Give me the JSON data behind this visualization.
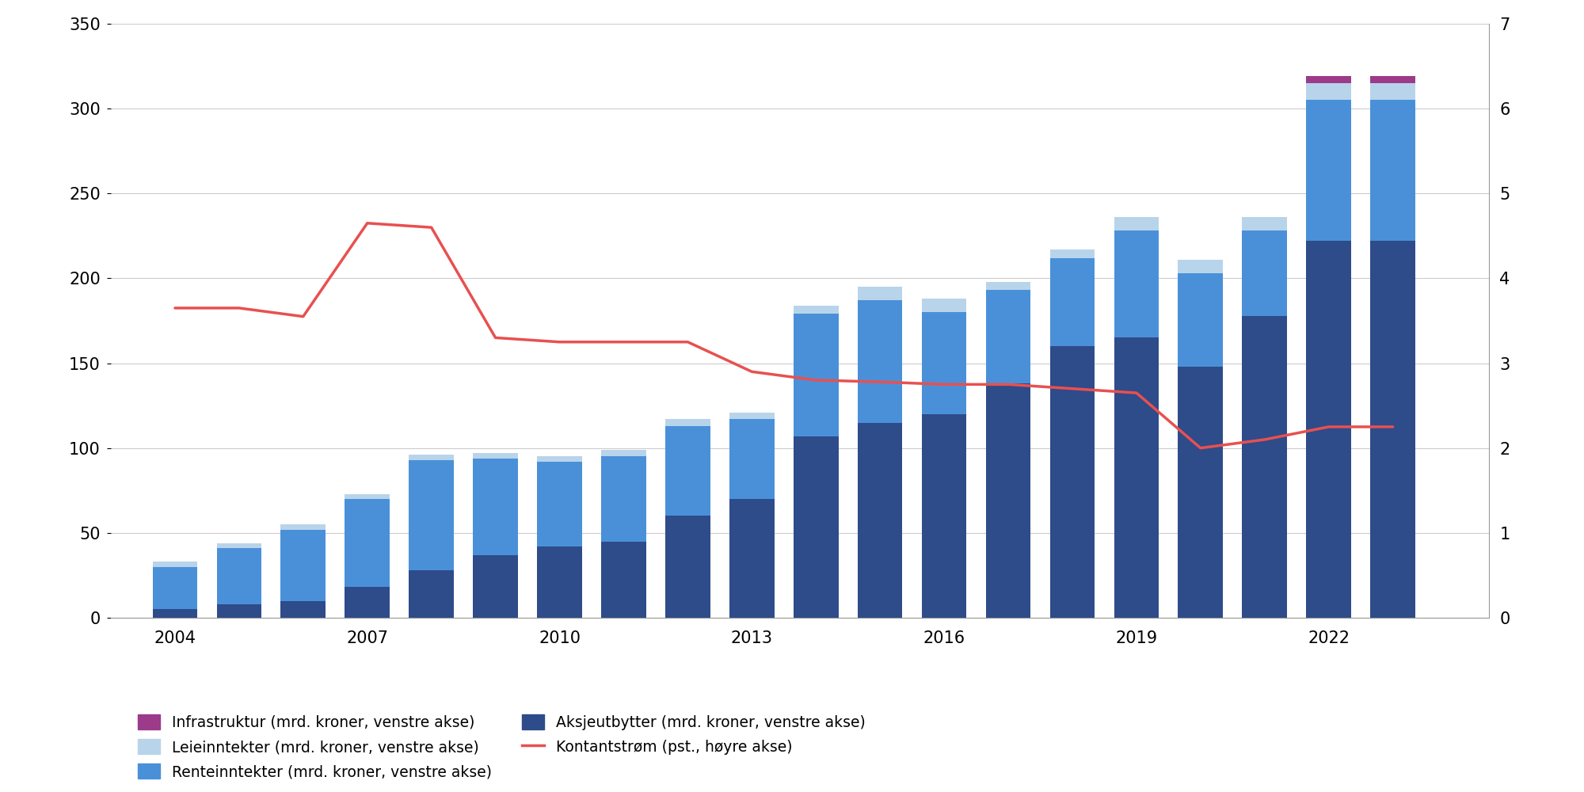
{
  "years": [
    2004,
    2005,
    2006,
    2007,
    2008,
    2009,
    2010,
    2011,
    2012,
    2013,
    2014,
    2015,
    2016,
    2017,
    2018,
    2019,
    2020,
    2021,
    2022,
    2023
  ],
  "aksjeutbytter": [
    5,
    8,
    10,
    18,
    28,
    37,
    42,
    45,
    60,
    70,
    107,
    115,
    120,
    138,
    160,
    165,
    148,
    178,
    222,
    222
  ],
  "renteinntekter": [
    25,
    33,
    42,
    52,
    65,
    57,
    50,
    50,
    53,
    47,
    72,
    72,
    60,
    55,
    52,
    63,
    55,
    50,
    83,
    83
  ],
  "leieinntekter": [
    3,
    3,
    3,
    3,
    3,
    3,
    3,
    4,
    4,
    4,
    5,
    8,
    8,
    5,
    5,
    8,
    8,
    8,
    10,
    10
  ],
  "infrastruktur": [
    0,
    0,
    0,
    0,
    0,
    0,
    0,
    0,
    0,
    0,
    0,
    0,
    0,
    0,
    0,
    0,
    0,
    0,
    4,
    4
  ],
  "kontantstrom": [
    3.65,
    3.65,
    3.55,
    4.65,
    4.6,
    3.3,
    3.25,
    3.25,
    3.25,
    2.9,
    2.8,
    2.78,
    2.75,
    2.75,
    2.7,
    2.65,
    2.0,
    2.1,
    2.25,
    2.25
  ],
  "color_aksjeutbytter": "#2e4b8a",
  "color_renteinntekter": "#4a90d9",
  "color_leieinntekter": "#b8d4ea",
  "color_infrastruktur": "#9b3b8a",
  "color_line": "#e85050",
  "ylim_left": [
    0,
    350
  ],
  "ylim_right": [
    0,
    7
  ],
  "yticks_left": [
    0,
    50,
    100,
    150,
    200,
    250,
    300,
    350
  ],
  "yticks_right": [
    0,
    1,
    2,
    3,
    4,
    5,
    6,
    7
  ],
  "xtick_years": [
    2004,
    2007,
    2010,
    2013,
    2016,
    2019,
    2022
  ],
  "legend_labels": [
    "Infrastruktur (mrd. kroner, venstre akse)",
    "Leieinntekter (mrd. kroner, venstre akse)",
    "Renteinntekter (mrd. kroner, venstre akse)",
    "Aksjeutbytter (mrd. kroner, venstre akse)",
    "Kontantstrøm (pst., høyre akse)"
  ],
  "background_color": "#ffffff"
}
